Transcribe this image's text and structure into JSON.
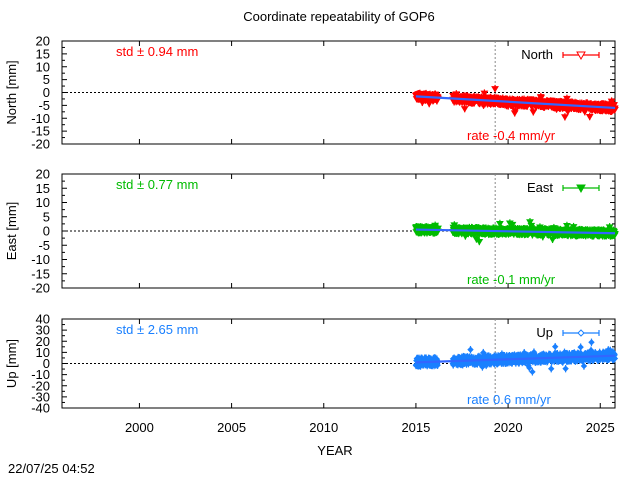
{
  "chart_data": {
    "type": "scatter",
    "title": "Coordinate repeatability of GOP6",
    "xlabel": "YEAR",
    "xlim": [
      1995.8,
      2025.8
    ],
    "xticks": [
      2000,
      2005,
      2010,
      2015,
      2020,
      2025
    ],
    "reference_year": 2019.3,
    "timestamp": "22/07/25 04:52",
    "panels": [
      {
        "id": "north",
        "ylabel": "North [mm]",
        "ylim": [
          -20,
          20
        ],
        "yticks": [
          -20,
          -15,
          -10,
          -5,
          0,
          5,
          10,
          15,
          20
        ],
        "color": "#ff0000",
        "legend": "North",
        "marker": "triangle-down-open",
        "std_text": "std ± 0.94 mm",
        "rate_text": "rate -0.4 mm/yr",
        "rate": -0.4,
        "segments": [
          [
            2015.0,
            2016.2
          ],
          [
            2017.0,
            2025.8
          ]
        ],
        "trend_start": [
          2015.0,
          -1.5
        ],
        "trend_end": [
          2025.8,
          -6.0
        ],
        "scatter_amplitude": 2.2,
        "spike_amplitude": 4.0
      },
      {
        "id": "east",
        "ylabel": "East [mm]",
        "ylim": [
          -20,
          20
        ],
        "yticks": [
          -20,
          -15,
          -10,
          -5,
          0,
          5,
          10,
          15,
          20
        ],
        "color": "#00bb00",
        "legend": "East",
        "marker": "triangle-down-filled",
        "std_text": "std ± 0.77 mm",
        "rate_text": "rate -0.1 mm/yr",
        "rate": -0.1,
        "segments": [
          [
            2015.0,
            2016.2
          ],
          [
            2017.0,
            2025.8
          ]
        ],
        "trend_start": [
          2015.0,
          0.5
        ],
        "trend_end": [
          2025.8,
          -0.8
        ],
        "scatter_amplitude": 1.8,
        "spike_amplitude": 3.5
      },
      {
        "id": "up",
        "ylabel": "Up [mm]",
        "ylim": [
          -40,
          40
        ],
        "yticks": [
          -40,
          -30,
          -20,
          -10,
          0,
          10,
          20,
          30,
          40
        ],
        "color": "#1a80ff",
        "legend": "Up",
        "marker": "diamond-open",
        "std_text": "std ± 2.65 mm",
        "rate_text": "rate  0.6 mm/yr",
        "rate": 0.6,
        "segments": [
          [
            2015.0,
            2016.2
          ],
          [
            2017.0,
            2025.8
          ]
        ],
        "trend_start": [
          2015.0,
          1.0
        ],
        "trend_end": [
          2025.8,
          7.0
        ],
        "scatter_amplitude": 6.0,
        "spike_amplitude": 10.0
      }
    ]
  }
}
